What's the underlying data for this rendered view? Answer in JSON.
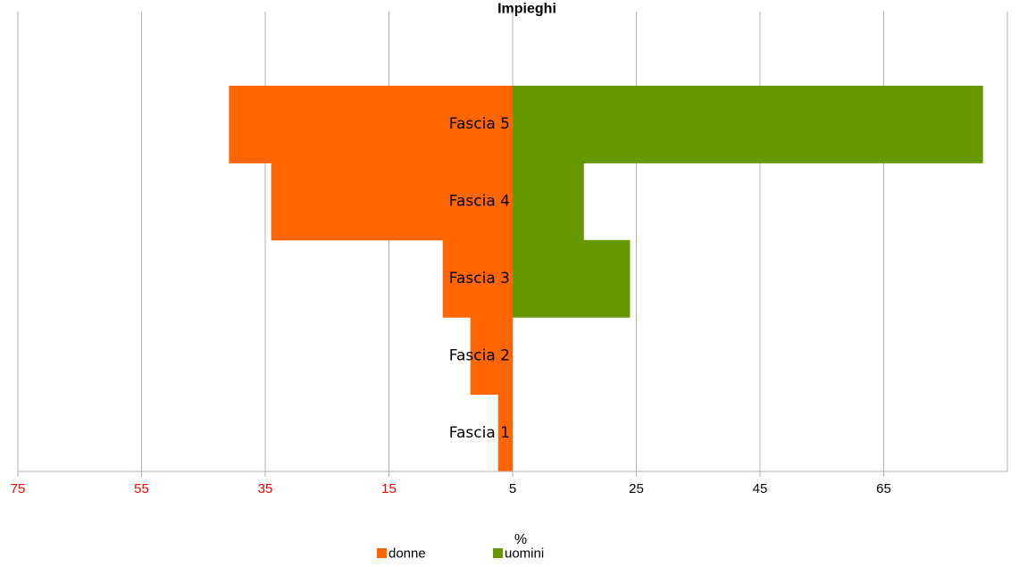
{
  "chart_data": {
    "type": "bar",
    "orientation": "horizontal",
    "layout": "population-pyramid",
    "title": "Impieghi",
    "xlabel": "%",
    "ylabel": "",
    "categories": [
      "Fascia 5",
      "Fascia 4",
      "Fascia 3",
      "Fascia 2",
      "Fascia 1"
    ],
    "x_tick_labels": [
      "75",
      "55",
      "35",
      "15",
      "5",
      "25",
      "45",
      "65"
    ],
    "series": [
      {
        "name": "donne",
        "color": "#ff6600",
        "values": [
          43,
          36.6,
          10.6,
          6.4,
          2.2
        ],
        "direction": "left"
      },
      {
        "name": "uomini",
        "color": "#669900",
        "values": [
          71.3,
          10.8,
          17.8,
          0,
          0
        ],
        "direction": "right"
      }
    ],
    "xlim": [
      -75,
      75
    ],
    "negative_tick_color": "#ff0000",
    "grid": true,
    "legend": "bottom"
  }
}
